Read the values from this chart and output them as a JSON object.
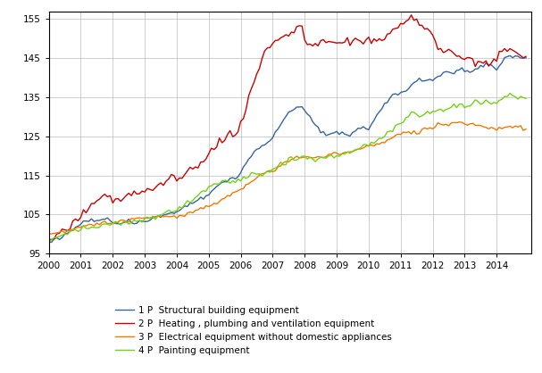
{
  "title": "",
  "ylim": [
    95,
    157
  ],
  "yticks": [
    95,
    105,
    115,
    125,
    135,
    145,
    155
  ],
  "xlim_start": 2000.0,
  "xlim_end": 2015.08,
  "xtick_labels": [
    "2000",
    "2001",
    "2002",
    "2003",
    "2004",
    "2005",
    "2006",
    "2007",
    "2008",
    "2009",
    "2010",
    "2011",
    "2012",
    "2013",
    "2014"
  ],
  "series": {
    "1P": {
      "label": "1 P  Structural building equipment",
      "color": "#3465a4",
      "linewidth": 1.0
    },
    "2P": {
      "label": "2 P  Heating , plumbing and ventilation equipment",
      "color": "#cc0000",
      "linewidth": 1.0
    },
    "3P": {
      "label": "3 P  Electrical equipment without domestic appliances",
      "color": "#f57900",
      "linewidth": 1.0
    },
    "4P": {
      "label": "4 P  Painting equipment",
      "color": "#73d216",
      "linewidth": 1.0
    }
  },
  "background_color": "#ffffff",
  "grid_color": "#bbbbbb",
  "legend_fontsize": 7.5,
  "tick_fontsize": 7.5
}
